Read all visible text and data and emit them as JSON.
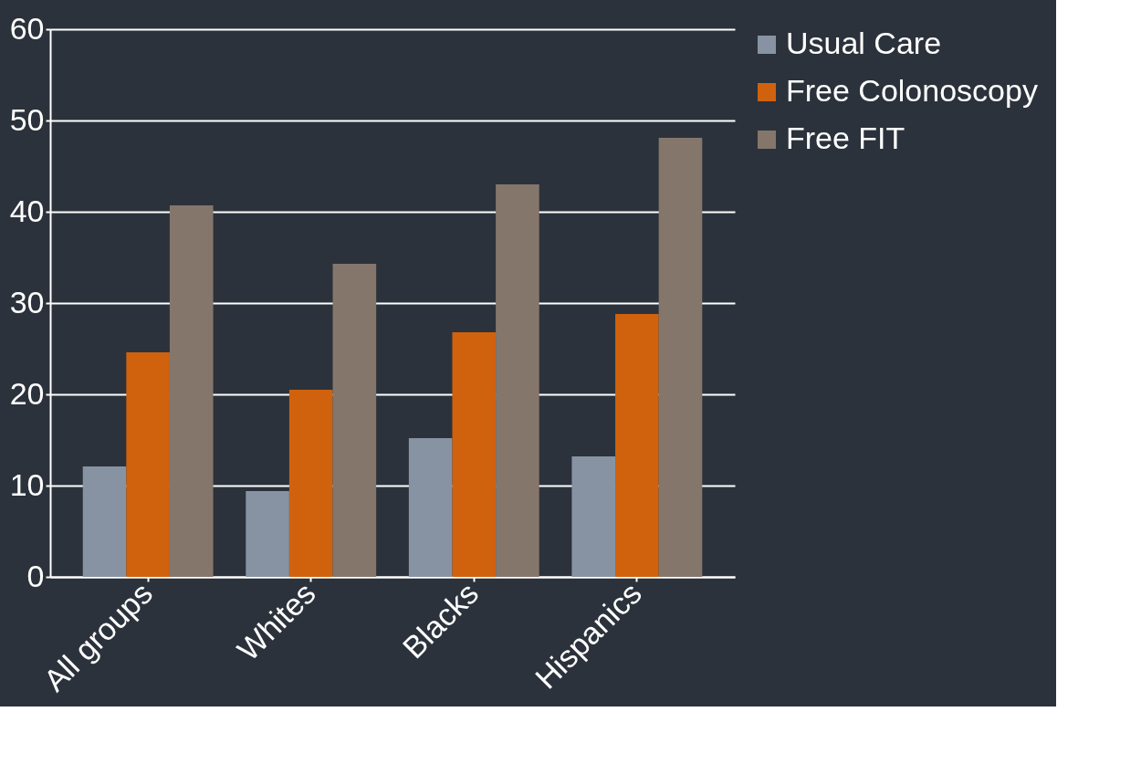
{
  "chart_data": {
    "type": "bar",
    "categories": [
      "All groups",
      "Whites",
      "Blacks",
      "Hispanics"
    ],
    "series": [
      {
        "name": "Usual Care",
        "color": "#8793a3",
        "values": [
          12.1,
          9.4,
          15.2,
          13.2
        ]
      },
      {
        "name": "Free Colonoscopy",
        "color": "#d0620e",
        "values": [
          24.6,
          20.5,
          26.8,
          28.8
        ]
      },
      {
        "name": "Free FIT",
        "color": "#85766c",
        "values": [
          40.7,
          34.3,
          43.0,
          48.1
        ]
      }
    ],
    "ylim": [
      0,
      60
    ],
    "yticks": [
      0,
      10,
      20,
      30,
      40,
      50,
      60
    ],
    "grid": "y",
    "legend": "right"
  }
}
